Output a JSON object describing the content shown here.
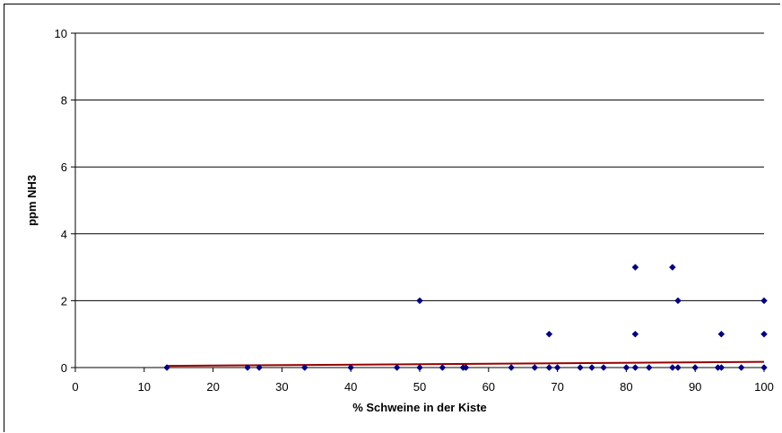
{
  "chart_data": {
    "type": "scatter",
    "title": "",
    "xlabel": "% Schweine in der Kiste",
    "ylabel": "ppm NH3",
    "xlim": [
      0,
      100
    ],
    "ylim": [
      0,
      10
    ],
    "x_ticks": [
      0,
      10,
      20,
      30,
      40,
      50,
      60,
      70,
      80,
      90,
      100
    ],
    "y_ticks": [
      0,
      2,
      4,
      6,
      8,
      10
    ],
    "grid": "horizontal",
    "legend": "none",
    "series": [
      {
        "marker": "diamond",
        "color": "#000080",
        "points": [
          [
            13.3,
            0
          ],
          [
            25,
            0
          ],
          [
            26.7,
            0
          ],
          [
            33.3,
            0
          ],
          [
            40,
            0
          ],
          [
            46.7,
            0
          ],
          [
            50,
            0
          ],
          [
            50,
            2
          ],
          [
            53.3,
            0
          ],
          [
            56.3,
            0
          ],
          [
            56.7,
            0
          ],
          [
            63.3,
            0
          ],
          [
            66.7,
            0
          ],
          [
            68.8,
            0
          ],
          [
            68.8,
            1
          ],
          [
            70,
            0
          ],
          [
            73.3,
            0
          ],
          [
            75,
            0
          ],
          [
            76.7,
            0
          ],
          [
            80,
            0
          ],
          [
            81.3,
            0
          ],
          [
            81.3,
            1
          ],
          [
            81.3,
            3
          ],
          [
            83.3,
            0
          ],
          [
            86.7,
            0
          ],
          [
            86.7,
            3
          ],
          [
            87.5,
            0
          ],
          [
            87.5,
            2
          ],
          [
            90,
            0
          ],
          [
            93.3,
            0
          ],
          [
            93.8,
            0
          ],
          [
            93.8,
            1
          ],
          [
            96.7,
            0
          ],
          [
            100,
            0
          ],
          [
            100,
            1
          ],
          [
            100,
            2
          ]
        ]
      }
    ],
    "trendline": {
      "type": "linear",
      "color": "#990000",
      "x": [
        13.3,
        100
      ],
      "y": [
        0.05,
        0.17
      ]
    }
  }
}
